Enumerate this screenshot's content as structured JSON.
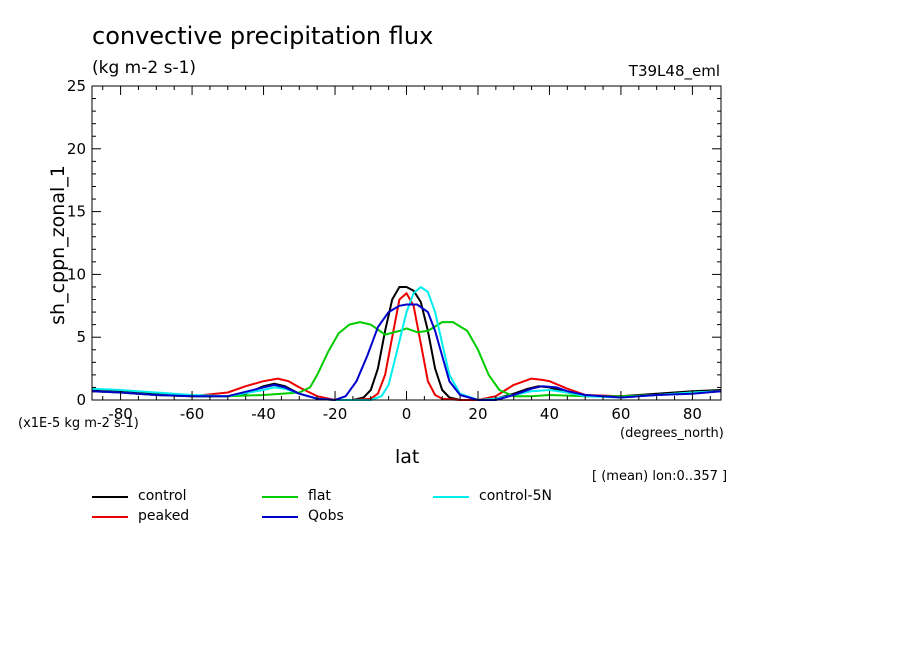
{
  "chart_data": {
    "type": "line",
    "title": "convective precipitation flux",
    "units": "(kg m-2 s-1)",
    "experiment": "T39L48_eml",
    "ylabel": "sh_cppn_zonal_1",
    "scale_note": "(x1E-5 kg m-2 s-1)",
    "xlabel": "lat",
    "xunits": "(degrees_north)",
    "footnote": "[ (mean) lon:0..357 ]",
    "xlim": [
      -88,
      88
    ],
    "ylim": [
      0,
      25
    ],
    "xticks": [
      -80,
      -60,
      -40,
      -20,
      0,
      20,
      40,
      60,
      80
    ],
    "yticks": [
      0,
      5,
      10,
      15,
      20,
      25
    ],
    "grid": false,
    "legend_position": "bottom",
    "series": [
      {
        "name": "control",
        "color": "#000000",
        "x": [
          -88,
          -80,
          -70,
          -60,
          -50,
          -45,
          -40,
          -37,
          -34,
          -30,
          -25,
          -20,
          -15,
          -12,
          -10,
          -8,
          -6,
          -4,
          -2,
          0,
          2,
          4,
          6,
          8,
          10,
          12,
          15,
          20,
          25,
          30,
          34,
          37,
          40,
          45,
          50,
          60,
          70,
          80,
          88
        ],
        "y": [
          0.8,
          0.7,
          0.5,
          0.3,
          0.3,
          0.5,
          1.1,
          1.3,
          1.1,
          0.5,
          0.1,
          0.0,
          0.0,
          0.2,
          0.8,
          2.5,
          5.5,
          8.0,
          9.0,
          9.0,
          8.7,
          7.8,
          5.5,
          2.5,
          0.8,
          0.2,
          0.0,
          0.0,
          0.1,
          0.5,
          0.9,
          1.1,
          1.0,
          0.6,
          0.3,
          0.3,
          0.5,
          0.7,
          0.8
        ]
      },
      {
        "name": "peaked",
        "color": "#ee0000",
        "x": [
          -88,
          -80,
          -70,
          -60,
          -50,
          -45,
          -40,
          -36,
          -33,
          -30,
          -25,
          -20,
          -15,
          -10,
          -8,
          -6,
          -4,
          -2,
          0,
          2,
          4,
          6,
          8,
          10,
          15,
          20,
          25,
          30,
          35,
          38,
          40,
          45,
          50,
          60,
          70,
          80,
          88
        ],
        "y": [
          0.7,
          0.6,
          0.4,
          0.3,
          0.6,
          1.1,
          1.5,
          1.7,
          1.5,
          1.0,
          0.3,
          0.0,
          0.0,
          0.1,
          0.5,
          2.0,
          5.0,
          8.0,
          8.5,
          7.5,
          4.5,
          1.5,
          0.4,
          0.1,
          0.0,
          0.0,
          0.3,
          1.2,
          1.7,
          1.6,
          1.5,
          0.9,
          0.4,
          0.3,
          0.4,
          0.6,
          0.7
        ]
      },
      {
        "name": "flat",
        "color": "#00cc00",
        "x": [
          -88,
          -80,
          -70,
          -60,
          -50,
          -40,
          -35,
          -30,
          -27,
          -25,
          -22,
          -19,
          -16,
          -13,
          -10,
          -6,
          -2,
          0,
          3,
          6,
          10,
          13,
          17,
          20,
          23,
          26,
          30,
          35,
          40,
          50,
          60,
          70,
          80,
          88
        ],
        "y": [
          0.7,
          0.6,
          0.4,
          0.3,
          0.3,
          0.4,
          0.5,
          0.6,
          1.0,
          2.0,
          3.8,
          5.3,
          6.0,
          6.2,
          6.0,
          5.2,
          5.5,
          5.7,
          5.4,
          5.5,
          6.2,
          6.2,
          5.5,
          4.0,
          2.0,
          0.8,
          0.3,
          0.3,
          0.4,
          0.3,
          0.3,
          0.4,
          0.6,
          0.7
        ]
      },
      {
        "name": "control-5N",
        "color": "#00eeee",
        "x": [
          -88,
          -80,
          -70,
          -60,
          -50,
          -40,
          -37,
          -34,
          -30,
          -25,
          -20,
          -15,
          -10,
          -7,
          -5,
          -3,
          0,
          2,
          4,
          6,
          8,
          10,
          12,
          15,
          20,
          25,
          30,
          35,
          40,
          45,
          50,
          60,
          70,
          80,
          88
        ],
        "y": [
          0.9,
          0.8,
          0.6,
          0.4,
          0.3,
          0.8,
          1.0,
          0.9,
          0.5,
          0.1,
          0.0,
          0.0,
          0.0,
          0.3,
          1.2,
          3.5,
          7.0,
          8.5,
          9.0,
          8.6,
          7.0,
          4.5,
          2.0,
          0.5,
          0.0,
          0.1,
          0.4,
          0.7,
          0.8,
          0.6,
          0.3,
          0.2,
          0.4,
          0.6,
          0.7
        ]
      },
      {
        "name": "Qobs",
        "color": "#0000cc",
        "x": [
          -88,
          -80,
          -70,
          -60,
          -50,
          -40,
          -37,
          -34,
          -30,
          -25,
          -20,
          -17,
          -14,
          -11,
          -8,
          -5,
          -2,
          0,
          3,
          6,
          8,
          10,
          12,
          15,
          20,
          25,
          30,
          35,
          38,
          42,
          45,
          50,
          60,
          70,
          80,
          88
        ],
        "y": [
          0.7,
          0.6,
          0.4,
          0.3,
          0.3,
          1.0,
          1.2,
          1.0,
          0.5,
          0.1,
          0.0,
          0.3,
          1.5,
          3.5,
          5.8,
          7.0,
          7.5,
          7.6,
          7.6,
          7.0,
          5.5,
          3.5,
          1.5,
          0.4,
          0.0,
          0.0,
          0.4,
          0.9,
          1.1,
          1.0,
          0.7,
          0.4,
          0.2,
          0.4,
          0.5,
          0.7
        ]
      }
    ]
  }
}
